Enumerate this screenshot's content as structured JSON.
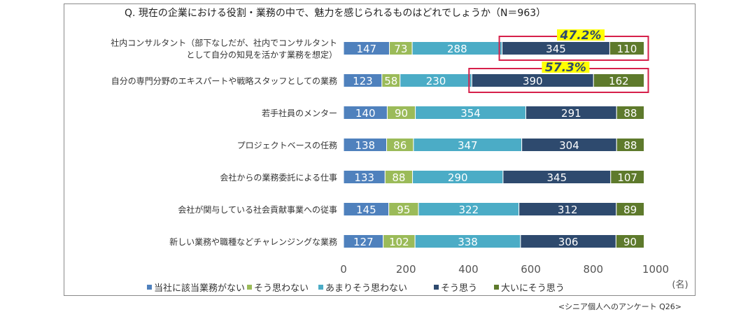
{
  "chart_data": {
    "type": "bar",
    "orientation": "horizontal",
    "stacked": true,
    "title": "Q. 現在の企業における役割・業務の中で、魅力を感じられるものはどれでしょうか（N＝963）",
    "categories": [
      [
        "社内コンサルタント（部下なしだが、社内でコンサルタント",
        "として自分の知見を活かす業務を想定）"
      ],
      [
        "自分の専門分野のエキスパートや戦略スタッフとしての業務"
      ],
      [
        "若手社員のメンター"
      ],
      [
        "プロジェクトベースの任務"
      ],
      [
        "会社からの業務委託による仕事"
      ],
      [
        "会社が関与している社会貢献事業への従事"
      ],
      [
        "新しい業務や職種などチャレンジングな業務"
      ]
    ],
    "series": [
      {
        "name": "当社に該当業務がない",
        "color": "#4f81bd",
        "values": [
          147,
          123,
          140,
          138,
          133,
          145,
          127
        ]
      },
      {
        "name": "そう思わない",
        "color": "#9bbb59",
        "values": [
          73,
          58,
          90,
          86,
          88,
          95,
          102
        ]
      },
      {
        "name": "あまりそう思わない",
        "color": "#4bacc6",
        "values": [
          288,
          230,
          354,
          347,
          290,
          322,
          338
        ]
      },
      {
        "name": "そう思う",
        "color": "#2e4a6e",
        "values": [
          345,
          390,
          291,
          304,
          345,
          312,
          306
        ]
      },
      {
        "name": "大いにそう思う",
        "color": "#5e7a2c",
        "values": [
          110,
          162,
          88,
          88,
          107,
          89,
          90
        ]
      }
    ],
    "xlim": [
      0,
      1000
    ],
    "xticks": [
      0,
      200,
      400,
      600,
      800,
      1000
    ],
    "x_unit": "(名)",
    "grid": false,
    "legend_position": "bottom",
    "highlights": [
      {
        "category_index": 0,
        "series_from": 3,
        "label": "47.2%"
      },
      {
        "category_index": 1,
        "series_from": 3,
        "label": "57.3%"
      }
    ],
    "highlight_color": "#d6204a",
    "highlight_label_bg": "#ffff00",
    "source_note": "<シニア個人へのアンケート Q26>"
  }
}
